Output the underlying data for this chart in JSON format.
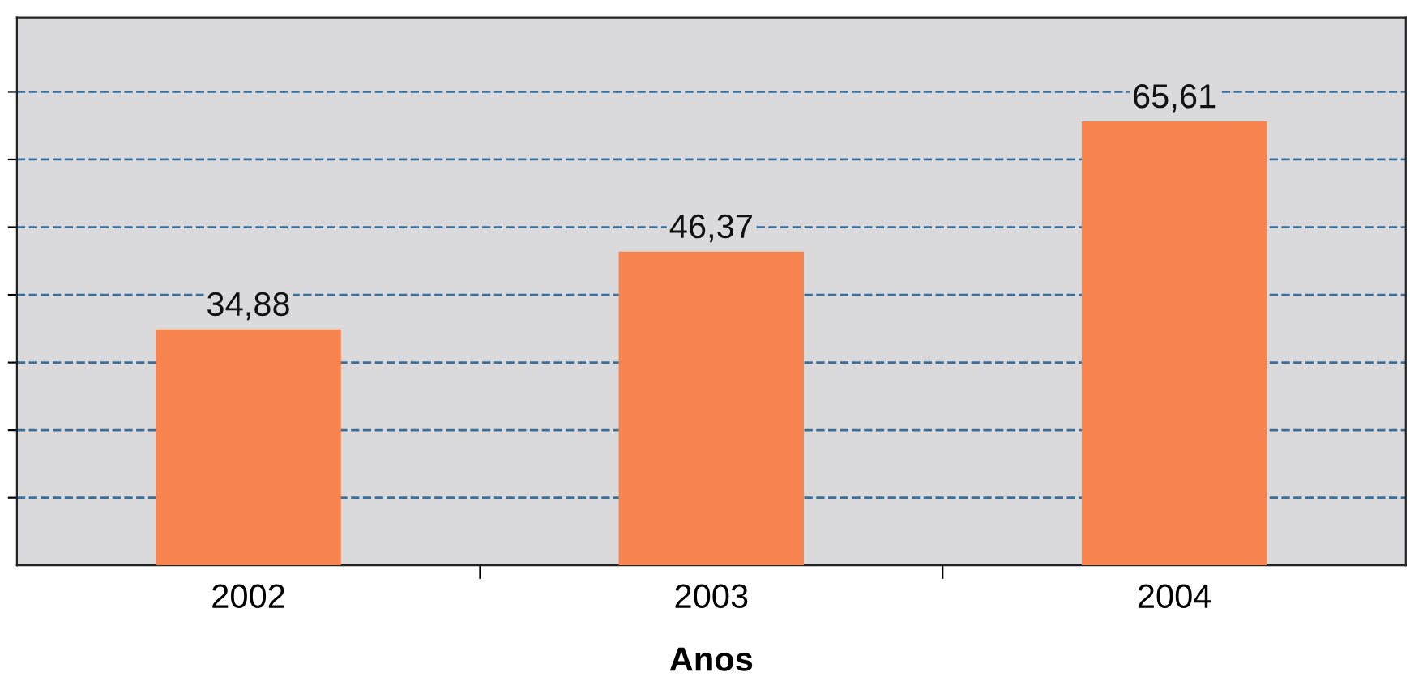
{
  "chart_data": {
    "type": "bar",
    "xlabel": "Anos",
    "categories": [
      "2002",
      "2003",
      "2004"
    ],
    "values": [
      34.88,
      46.37,
      65.61
    ],
    "value_labels": [
      "34,88",
      "46,37",
      "65,61"
    ],
    "color": "#f7834f",
    "ylim": [
      0,
      81
    ],
    "yticks": [
      {
        "value": 10,
        "label": null
      },
      {
        "value": 20,
        "label": null
      },
      {
        "value": 30,
        "label": null
      },
      {
        "value": 40,
        "label": null
      },
      {
        "value": 50,
        "label": null
      },
      {
        "value": 60,
        "label": null
      },
      {
        "value": 70,
        "label": null
      }
    ],
    "grid": "y",
    "line_style": "dashed"
  }
}
